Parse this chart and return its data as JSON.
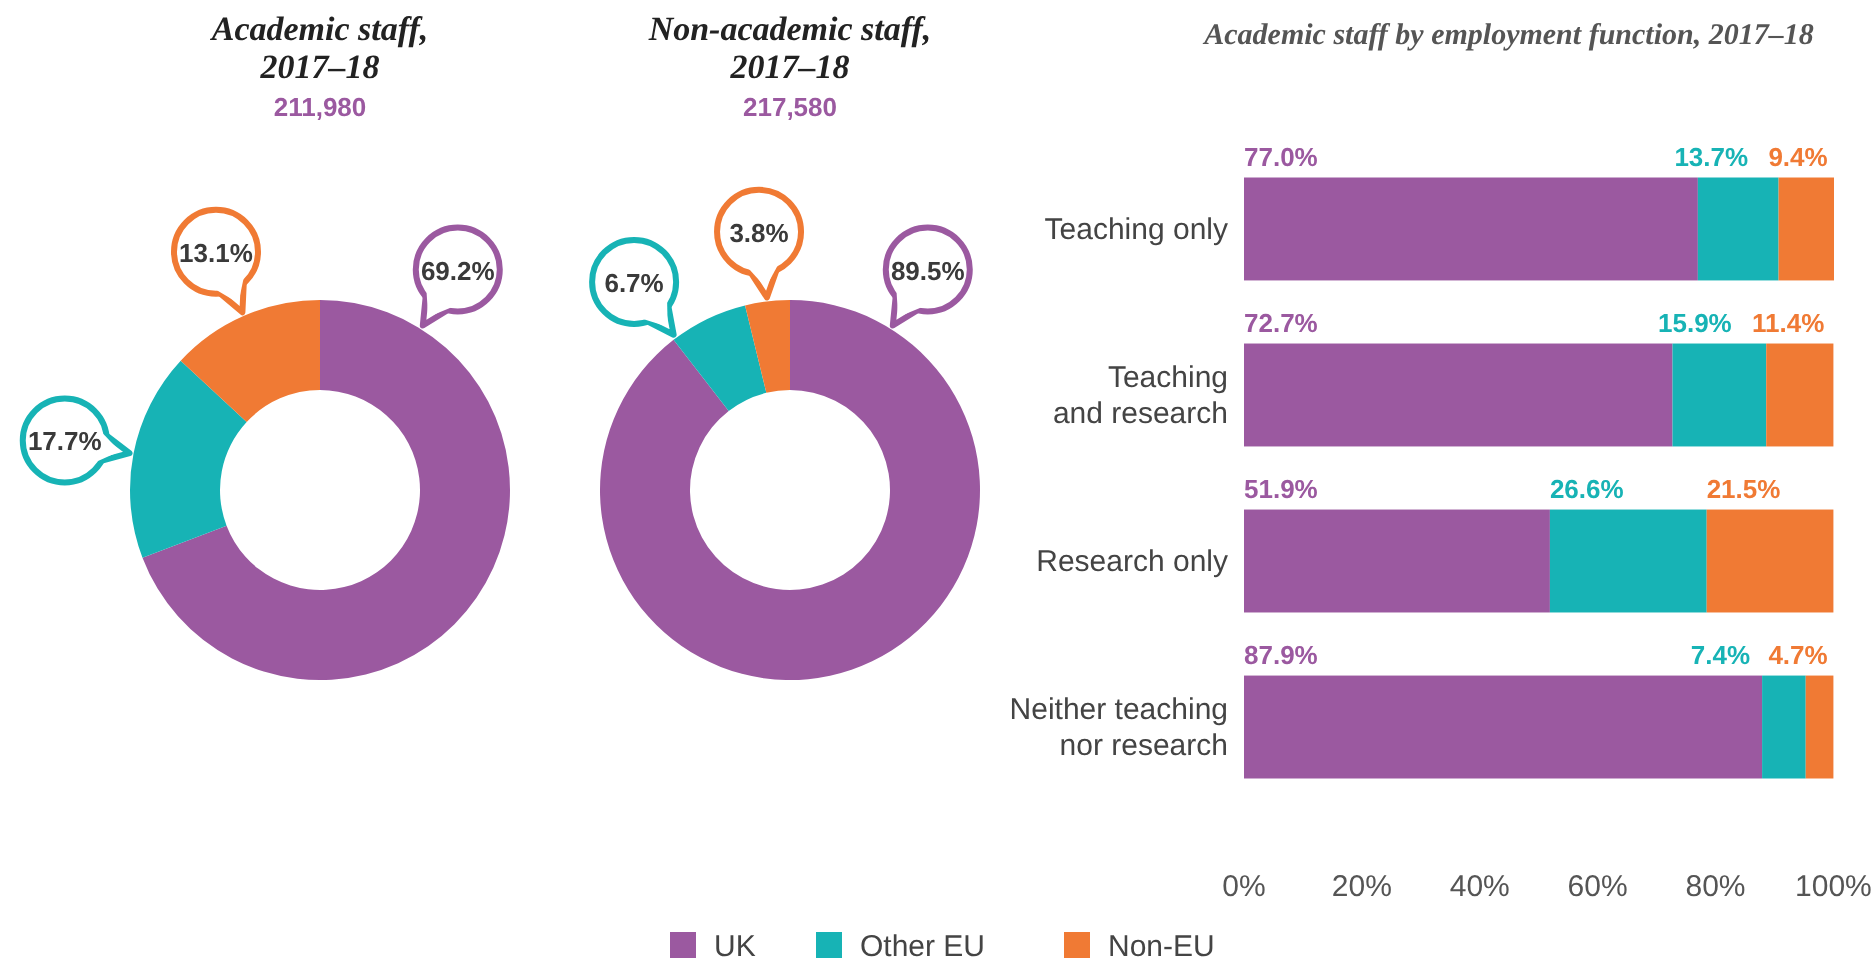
{
  "chart_data": [
    {
      "type": "donut",
      "title": "Academic staff, 2017–18",
      "subtitle": "211,980",
      "categories": [
        null,
        null,
        null
      ],
      "values": [
        69.2,
        17.7,
        13.1
      ],
      "colors": [
        "#9b59a0",
        "#17b3b5",
        "#f07a34"
      ],
      "value_labels": [
        "69.2%",
        "17.7%",
        "13.1%"
      ]
    },
    {
      "type": "donut",
      "title": "Non-academic staff, 2017–18",
      "subtitle": "217,580",
      "categories": [
        null,
        null,
        null
      ],
      "values": [
        89.5,
        6.7,
        3.8
      ],
      "colors": [
        "#9b59a0",
        "#17b3b5",
        "#f07a34"
      ],
      "value_labels": [
        "89.5%",
        "6.7%",
        "3.8%"
      ]
    },
    {
      "type": "bar",
      "orientation": "horizontal",
      "stacked": true,
      "title": "Academic staff by employment function, 2017–18",
      "categories": [
        "Teaching only",
        "Teaching and research",
        "Research only",
        "Neither teaching nor research"
      ],
      "series": [
        {
          "name": "UK",
          "color": "#9b59a0",
          "values": [
            77.0,
            72.7,
            51.9,
            87.9
          ],
          "value_labels": [
            "77.0%",
            "72.7%",
            "51.9%",
            "87.9%"
          ]
        },
        {
          "name": "Other EU",
          "color": "#17b3b5",
          "values": [
            13.7,
            15.9,
            26.6,
            7.4
          ],
          "value_labels": [
            "13.7%",
            "15.9%",
            "26.6%",
            "7.4%"
          ]
        },
        {
          "name": "Non-EU",
          "color": "#f07a34",
          "values": [
            9.4,
            11.4,
            21.5,
            4.7
          ],
          "value_labels": [
            "9.4%",
            "11.4%",
            "21.5%",
            "4.7%"
          ]
        }
      ],
      "xlim": [
        0,
        100.1
      ],
      "xticks": [
        {
          "value": 0,
          "label": "0%"
        },
        {
          "value": 20,
          "label": "20%"
        },
        {
          "value": 40,
          "label": "40%"
        },
        {
          "value": 60,
          "label": "60%"
        },
        {
          "value": 80,
          "label": "80%"
        },
        {
          "value": 100,
          "label": "100%"
        }
      ],
      "grid": false,
      "legend": "bottom"
    }
  ]
}
